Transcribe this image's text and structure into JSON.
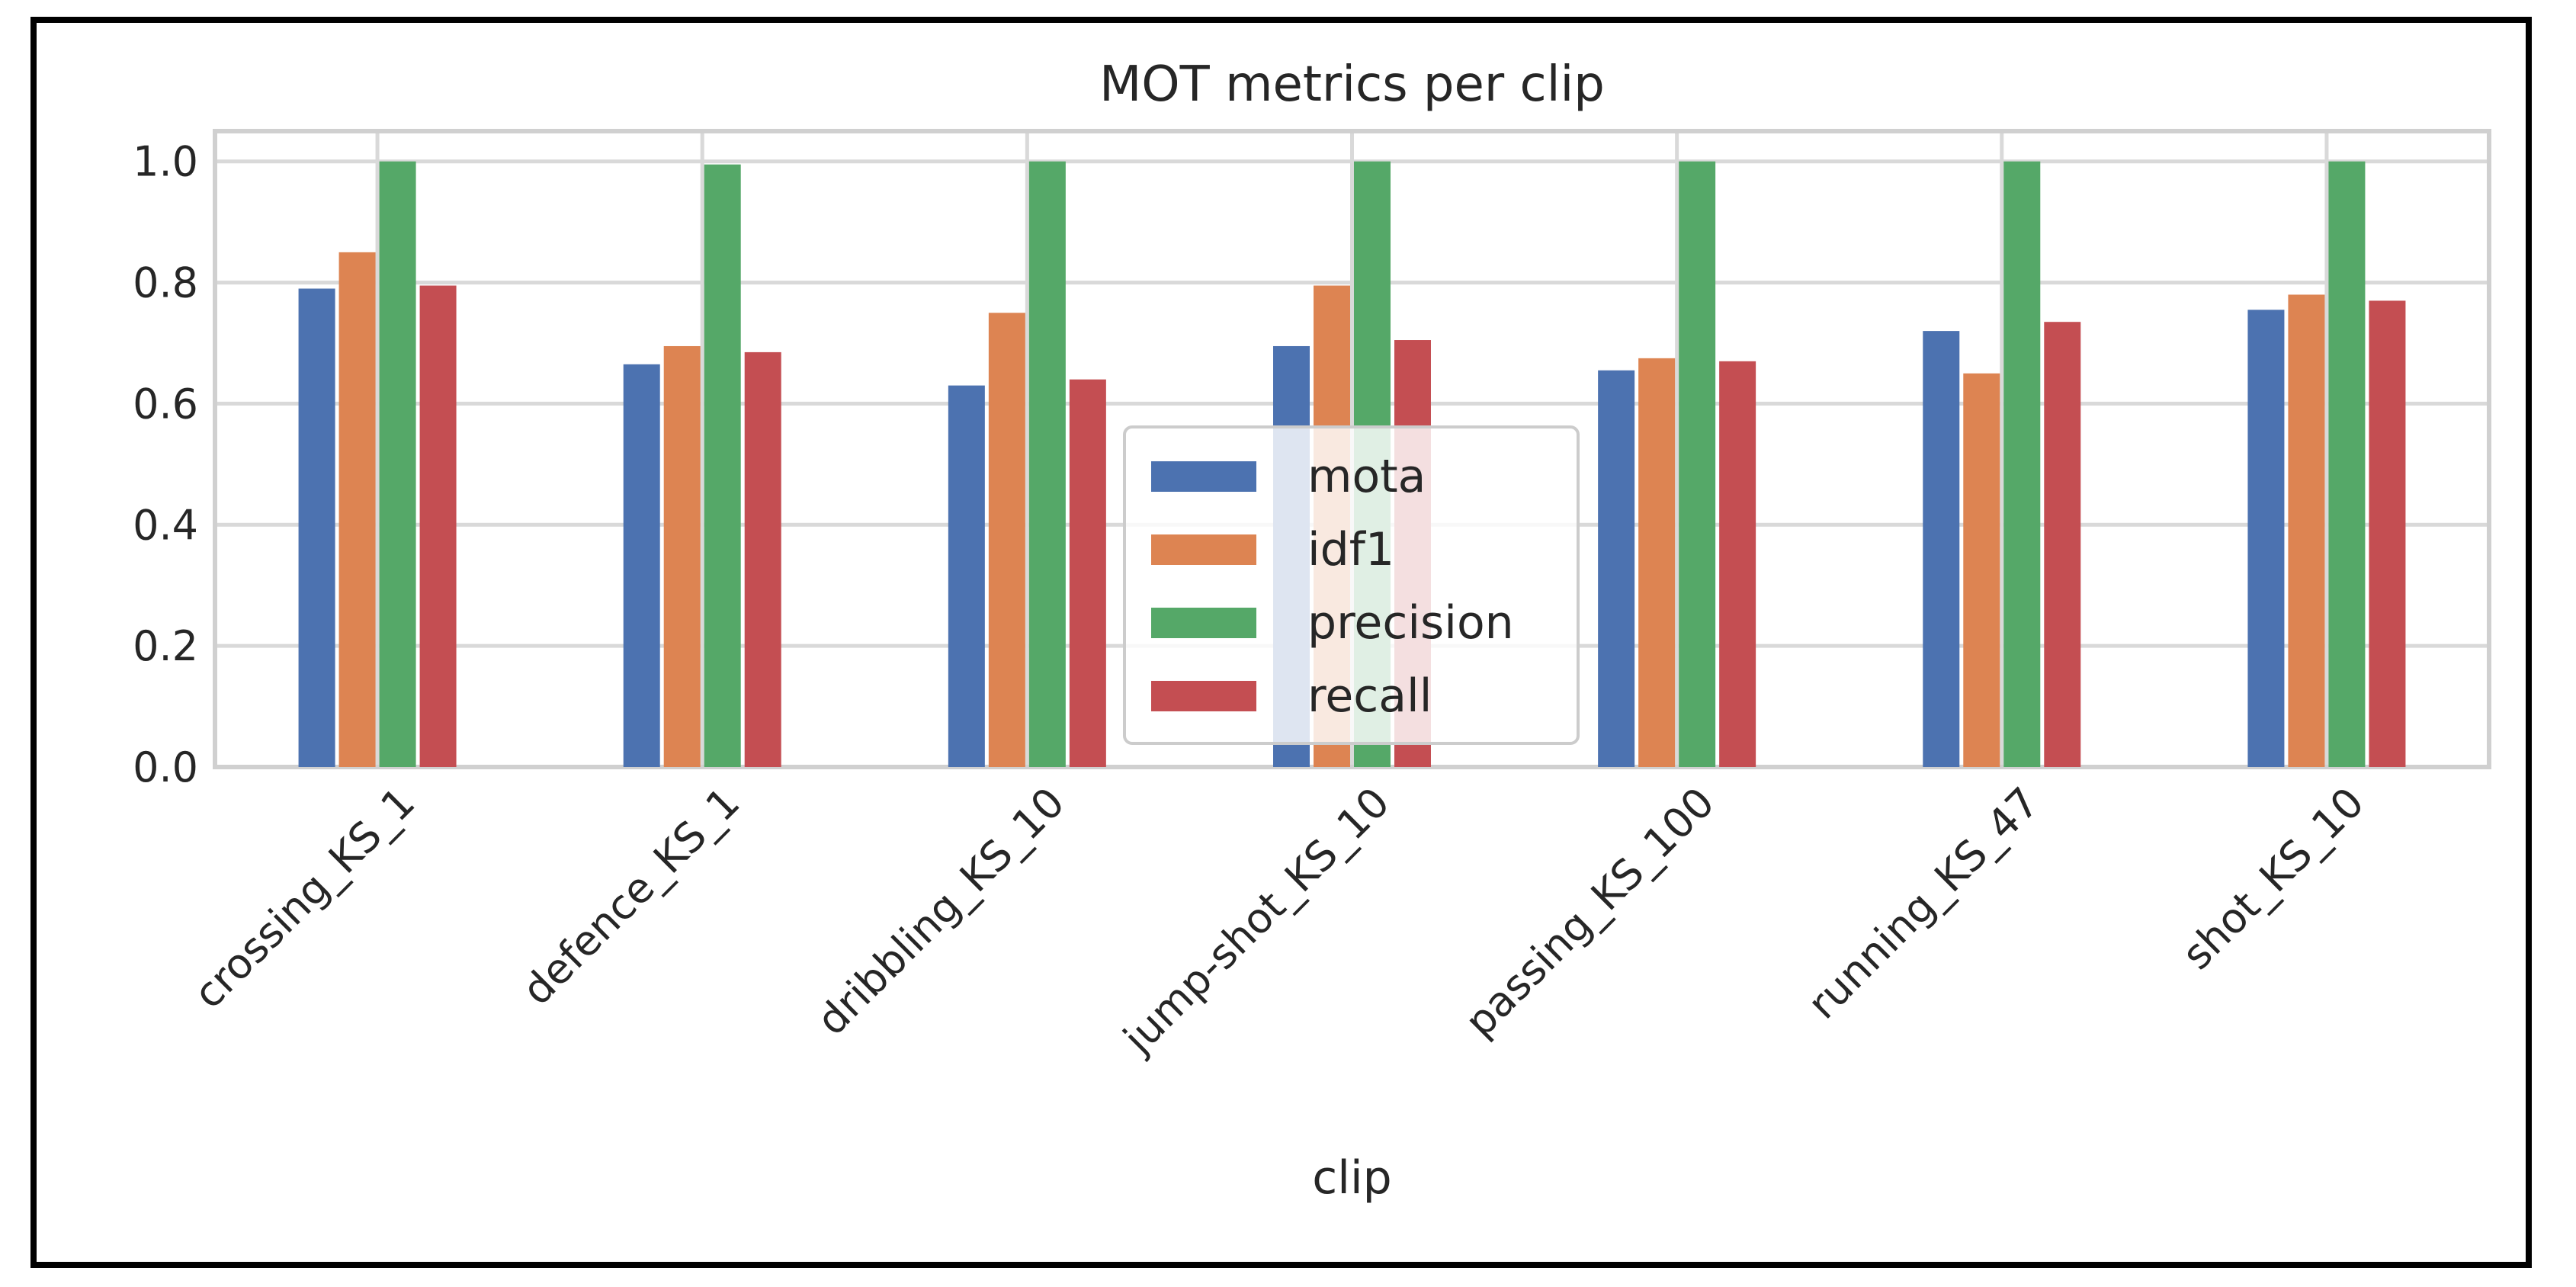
{
  "chart_data": {
    "type": "bar",
    "title": "MOT metrics per clip",
    "xlabel": "clip",
    "ylabel": "",
    "ylim": [
      0,
      1.05
    ],
    "yticks": [
      "0.0",
      "0.2",
      "0.4",
      "0.6",
      "0.8",
      "1.0"
    ],
    "ytick_values": [
      0,
      0.2,
      0.4,
      0.6,
      0.8,
      1.0
    ],
    "categories": [
      "crossing_KS_1",
      "defence_KS_1",
      "dribbling_KS_10",
      "jump-shot_KS_10",
      "passing_KS_100",
      "running_KS_47",
      "shot_KS_10"
    ],
    "series": [
      {
        "name": "mota",
        "color": "#4C72B0",
        "values": [
          0.79,
          0.665,
          0.63,
          0.695,
          0.655,
          0.72,
          0.755
        ]
      },
      {
        "name": "idf1",
        "color": "#DD8452",
        "values": [
          0.85,
          0.695,
          0.75,
          0.795,
          0.675,
          0.65,
          0.78
        ]
      },
      {
        "name": "precision",
        "color": "#55A868",
        "values": [
          1.0,
          0.995,
          1.0,
          1.0,
          1.0,
          1.0,
          1.0
        ]
      },
      {
        "name": "recall",
        "color": "#C44E52",
        "values": [
          0.795,
          0.685,
          0.64,
          0.705,
          0.67,
          0.735,
          0.77
        ]
      }
    ],
    "grid": true,
    "legend_position": "center"
  }
}
